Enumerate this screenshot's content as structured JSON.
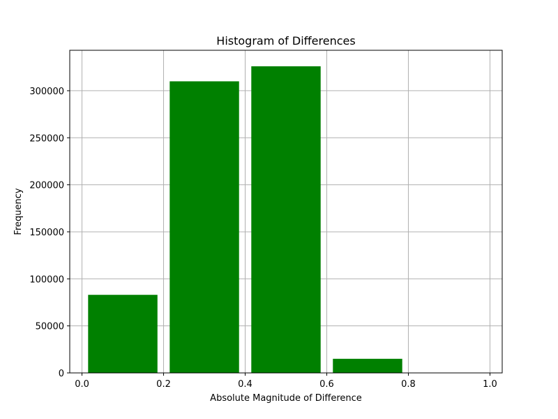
{
  "chart_data": {
    "type": "bar",
    "title": "Histogram of Differences",
    "xlabel": "Absolute Magnitude of Difference",
    "ylabel": "Frequency",
    "xlim": [
      -0.03,
      1.03
    ],
    "ylim": [
      0,
      343000
    ],
    "xticks": [
      0.0,
      0.2,
      0.4,
      0.6,
      0.8,
      1.0
    ],
    "xtick_labels": [
      "0.0",
      "0.2",
      "0.4",
      "0.6",
      "0.8",
      "1.0"
    ],
    "yticks": [
      0,
      50000,
      100000,
      150000,
      200000,
      250000,
      300000
    ],
    "ytick_labels": [
      "0",
      "50000",
      "100000",
      "150000",
      "200000",
      "250000",
      "300000"
    ],
    "grid": true,
    "bar_color": "#008000",
    "bins": [
      {
        "x0": 0.0,
        "x1": 0.2,
        "value": 83000
      },
      {
        "x0": 0.2,
        "x1": 0.4,
        "value": 310000
      },
      {
        "x0": 0.4,
        "x1": 0.6,
        "value": 326000
      },
      {
        "x0": 0.6,
        "x1": 0.8,
        "value": 15000
      },
      {
        "x0": 0.8,
        "x1": 1.0,
        "value": 0
      }
    ]
  }
}
